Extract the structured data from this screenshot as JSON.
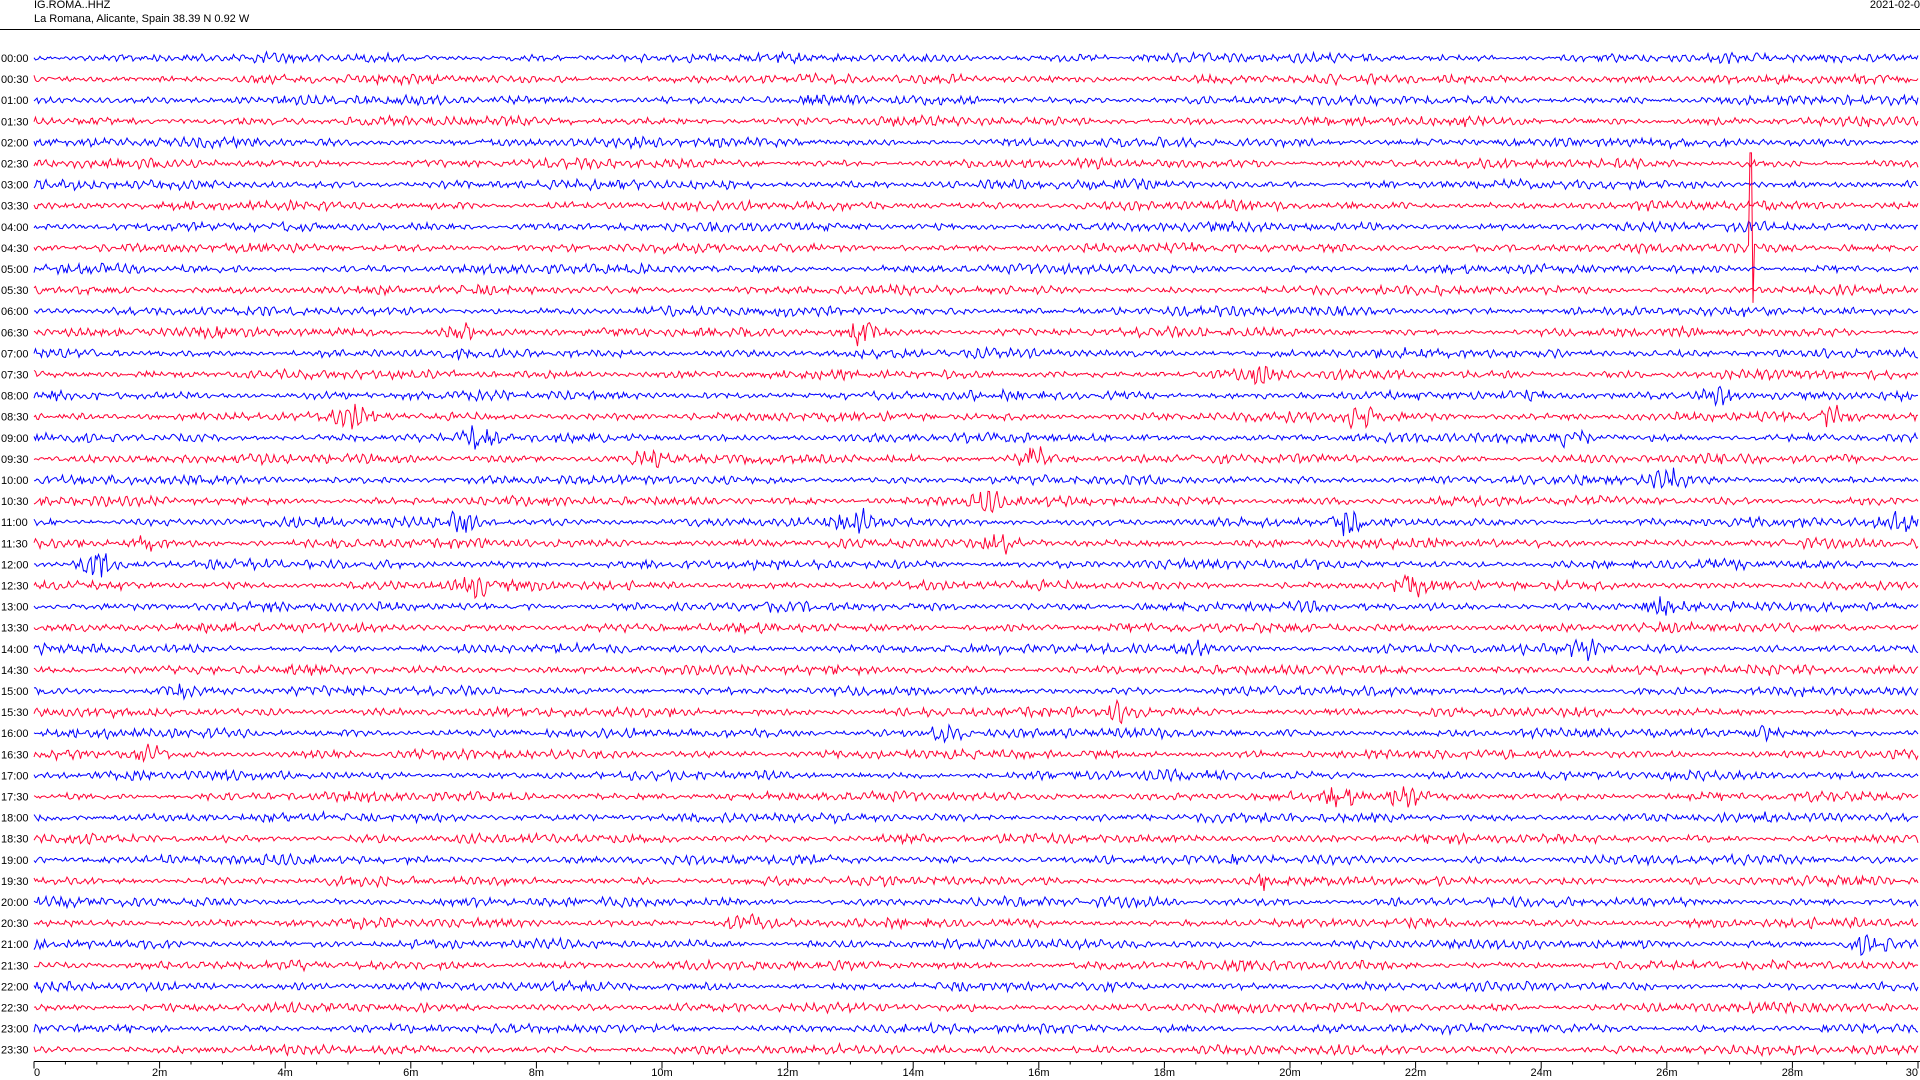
{
  "header": {
    "station_code": "IG.ROMA..HHZ",
    "location": "La Romana, Alicante, Spain  38.39 N 0.92 W",
    "date": "2021-02-0"
  },
  "chart_data": {
    "type": "line",
    "title": "",
    "xlabel": "",
    "ylabel": "",
    "xlim": [
      0,
      30
    ],
    "x_unit": "minutes",
    "x_ticks": [
      "0",
      "2m",
      "4m",
      "6m",
      "8m",
      "10m",
      "12m",
      "14m",
      "16m",
      "18m",
      "20m",
      "22m",
      "24m",
      "26m",
      "28m",
      "30"
    ],
    "row_labels": [
      "00:00",
      "00:30",
      "01:00",
      "01:30",
      "02:00",
      "02:30",
      "03:00",
      "03:30",
      "04:00",
      "04:30",
      "05:00",
      "05:30",
      "06:00",
      "06:30",
      "07:00",
      "07:30",
      "08:00",
      "08:30",
      "09:00",
      "09:30",
      "10:00",
      "10:30",
      "11:00",
      "11:30",
      "12:00",
      "12:30",
      "13:00",
      "13:30",
      "14:00",
      "14:30",
      "15:00",
      "15:30",
      "16:00",
      "16:30",
      "17:00",
      "17:30",
      "18:00",
      "18:30",
      "19:00",
      "19:30",
      "20:00",
      "20:30",
      "21:00",
      "21:30",
      "22:00",
      "22:30",
      "23:00",
      "23:30"
    ],
    "row_colors": [
      "#0000ff",
      "#ff0033"
    ],
    "grid": false,
    "legend": "none",
    "events": [
      {
        "row": 13,
        "minute": 6.8,
        "strength": 1.5
      },
      {
        "row": 13,
        "minute": 13.2,
        "strength": 2.0
      },
      {
        "row": 15,
        "minute": 19.5,
        "strength": 1.2
      },
      {
        "row": 16,
        "minute": 26.8,
        "strength": 1.8
      },
      {
        "row": 17,
        "minute": 5.1,
        "strength": 1.6
      },
      {
        "row": 17,
        "minute": 21.1,
        "strength": 1.8
      },
      {
        "row": 17,
        "minute": 28.7,
        "strength": 1.4
      },
      {
        "row": 18,
        "minute": 7.0,
        "strength": 1.5
      },
      {
        "row": 18,
        "minute": 24.5,
        "strength": 1.3
      },
      {
        "row": 19,
        "minute": 9.8,
        "strength": 1.3
      },
      {
        "row": 19,
        "minute": 15.9,
        "strength": 2.2
      },
      {
        "row": 20,
        "minute": 26.0,
        "strength": 1.6
      },
      {
        "row": 21,
        "minute": 15.2,
        "strength": 1.6
      },
      {
        "row": 22,
        "minute": 6.8,
        "strength": 1.5
      },
      {
        "row": 22,
        "minute": 13.1,
        "strength": 1.9
      },
      {
        "row": 22,
        "minute": 20.9,
        "strength": 1.6
      },
      {
        "row": 22,
        "minute": 29.7,
        "strength": 1.4
      },
      {
        "row": 23,
        "minute": 1.8,
        "strength": 1.4
      },
      {
        "row": 23,
        "minute": 15.4,
        "strength": 1.4
      },
      {
        "row": 24,
        "minute": 1.0,
        "strength": 2.0
      },
      {
        "row": 25,
        "minute": 7.0,
        "strength": 1.5
      },
      {
        "row": 25,
        "minute": 21.9,
        "strength": 1.6
      },
      {
        "row": 26,
        "minute": 25.9,
        "strength": 1.4
      },
      {
        "row": 28,
        "minute": 18.5,
        "strength": 1.7
      },
      {
        "row": 28,
        "minute": 24.7,
        "strength": 1.6
      },
      {
        "row": 30,
        "minute": 2.3,
        "strength": 1.3
      },
      {
        "row": 31,
        "minute": 17.3,
        "strength": 1.4
      },
      {
        "row": 32,
        "minute": 14.5,
        "strength": 1.8
      },
      {
        "row": 32,
        "minute": 27.5,
        "strength": 1.4
      },
      {
        "row": 33,
        "minute": 1.8,
        "strength": 1.5
      },
      {
        "row": 35,
        "minute": 20.8,
        "strength": 1.4
      },
      {
        "row": 35,
        "minute": 21.8,
        "strength": 1.3
      },
      {
        "row": 39,
        "minute": 19.6,
        "strength": 1.1
      },
      {
        "row": 41,
        "minute": 11.3,
        "strength": 1.6
      },
      {
        "row": 42,
        "minute": 29.2,
        "strength": 1.6
      }
    ],
    "spike": {
      "row": 9,
      "minute": 27.35
    }
  }
}
